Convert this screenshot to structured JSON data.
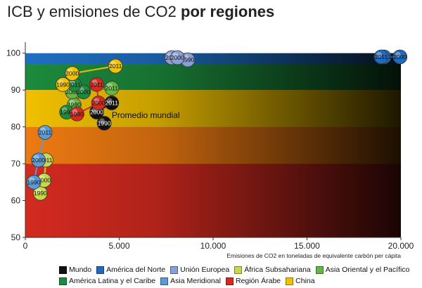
{
  "title": {
    "normal": "ICB y emisiones de CO2",
    "bold": "por regiones"
  },
  "chart_data": {
    "type": "scatter",
    "title": "ICB y emisiones de CO2 por regiones",
    "xlabel": "Emisiones de CO2 en toneladas de equivalente carbón per cápita",
    "ylabel": "",
    "xlim": [
      0,
      20000
    ],
    "ylim": [
      50,
      103
    ],
    "x_ticks": [
      "0",
      "5.000",
      "10.000",
      "15.000",
      "20.000"
    ],
    "y_ticks": [
      "50",
      "60",
      "70",
      "80",
      "90",
      "100"
    ],
    "bands": [
      {
        "from": 97,
        "to": 100,
        "color": "#1f6fc2"
      },
      {
        "from": 90,
        "to": 97,
        "color": "#1c8a3c"
      },
      {
        "from": 80,
        "to": 90,
        "color": "#f0c000"
      },
      {
        "from": 70,
        "to": 80,
        "color": "#ee7a12"
      },
      {
        "from": 50,
        "to": 70,
        "color": "#d42a20"
      }
    ],
    "series": [
      {
        "name": "Mundo",
        "color": "#111111",
        "label_color": "#ffffff",
        "points": [
          {
            "x": 4200,
            "y": 81,
            "label": "1990"
          },
          {
            "x": 3800,
            "y": 84,
            "label": "2000"
          },
          {
            "x": 4600,
            "y": 86.5,
            "label": "2011"
          }
        ]
      },
      {
        "name": "América del Norte",
        "color": "#1e6bbf",
        "label_color": "#111111",
        "points": [
          {
            "x": 19100,
            "y": 99,
            "label": "1990"
          },
          {
            "x": 18950,
            "y": 99,
            "label": "2011"
          },
          {
            "x": 19950,
            "y": 99,
            "label": "2000"
          }
        ]
      },
      {
        "name": "Unión Europea",
        "color": "#8a9fd6",
        "label_color": "#111111",
        "points": [
          {
            "x": 8650,
            "y": 98.2,
            "label": "1990"
          },
          {
            "x": 7800,
            "y": 98.8,
            "label": "2011"
          },
          {
            "x": 8100,
            "y": 98.8,
            "label": "2000"
          }
        ]
      },
      {
        "name": "África Subsahariana",
        "color": "#c8d84a",
        "label_color": "#111111",
        "points": [
          {
            "x": 800,
            "y": 62,
            "label": "1990"
          },
          {
            "x": 1000,
            "y": 65.5,
            "label": "2000"
          },
          {
            "x": 1100,
            "y": 71,
            "label": "2011"
          }
        ]
      },
      {
        "name": "Asia Oriental y el Pacífico",
        "color": "#66b646",
        "label_color": "#111111",
        "points": [
          {
            "x": 2600,
            "y": 86,
            "label": "1990"
          },
          {
            "x": 2500,
            "y": 89.5,
            "label": "2000"
          },
          {
            "x": 4600,
            "y": 90.5,
            "label": "2011"
          }
        ]
      },
      {
        "name": "América Latina y el Caribe",
        "color": "#1c8a3c",
        "label_color": "#111111",
        "points": [
          {
            "x": 2200,
            "y": 84,
            "label": "1990"
          },
          {
            "x": 3100,
            "y": 89.5,
            "label": "2000"
          },
          {
            "x": 2600,
            "y": 91.5,
            "label": "2011"
          }
        ]
      },
      {
        "name": "Asia Meridional",
        "color": "#5b9bd5",
        "label_color": "#111111",
        "points": [
          {
            "x": 450,
            "y": 65,
            "label": "1990"
          },
          {
            "x": 700,
            "y": 71,
            "label": "2000"
          },
          {
            "x": 1050,
            "y": 78.5,
            "label": "2011"
          }
        ]
      },
      {
        "name": "Región Árabe",
        "color": "#d42a20",
        "label_color": "#111111",
        "points": [
          {
            "x": 2750,
            "y": 83.5,
            "label": "1990"
          },
          {
            "x": 3900,
            "y": 86.5,
            "label": "2000"
          },
          {
            "x": 3800,
            "y": 91.5,
            "label": "2011"
          }
        ]
      },
      {
        "name": "China",
        "color": "#f2c200",
        "label_color": "#111111",
        "points": [
          {
            "x": 2000,
            "y": 91.5,
            "label": "1990"
          },
          {
            "x": 2500,
            "y": 94.5,
            "label": "2000"
          },
          {
            "x": 4800,
            "y": 96.5,
            "label": "2011"
          }
        ]
      }
    ],
    "annotations": [
      {
        "text": "Promedio mundial",
        "x": 4600,
        "y": 83
      }
    ]
  }
}
